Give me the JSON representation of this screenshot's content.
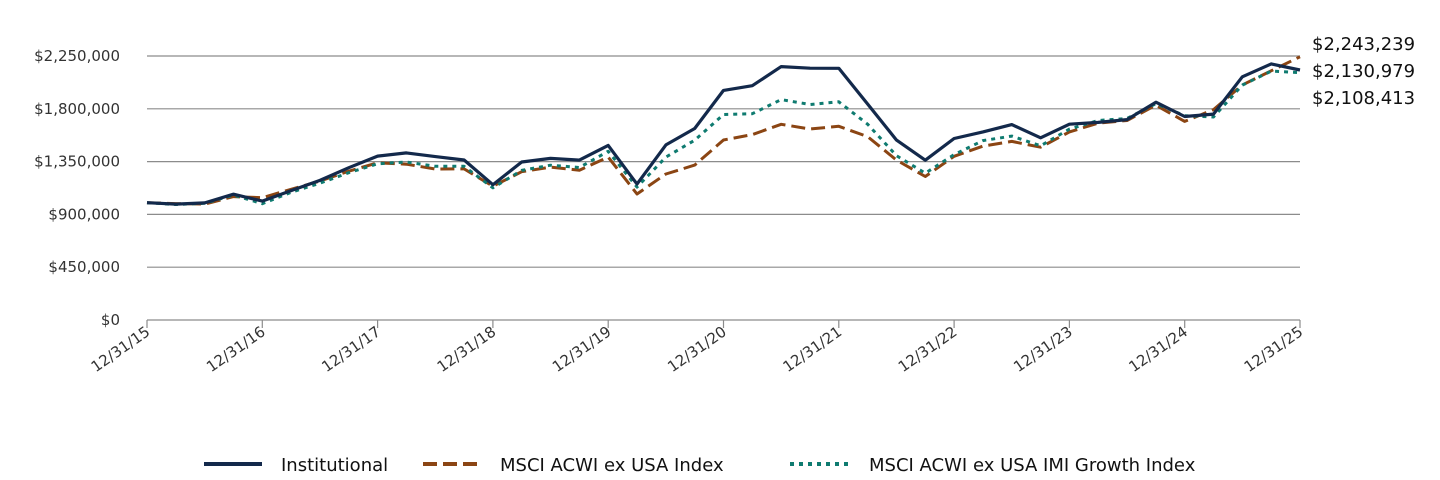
{
  "chart_data": {
    "type": "line",
    "title": "",
    "xlabel": "",
    "ylabel": "",
    "ylim": [
      0,
      2250000
    ],
    "y_ticks": [
      {
        "value": 0,
        "label": "$0"
      },
      {
        "value": 450000,
        "label": "$450,000"
      },
      {
        "value": 900000,
        "label": "$900,000"
      },
      {
        "value": 1350000,
        "label": "$1,350,000"
      },
      {
        "value": 1800000,
        "label": "$1,800,000"
      },
      {
        "value": 2250000,
        "label": "$2,250,000"
      }
    ],
    "x_ticks": [
      {
        "value": 0,
        "label": "12/31/15"
      },
      {
        "value": 4,
        "label": "12/31/16"
      },
      {
        "value": 8,
        "label": "12/31/17"
      },
      {
        "value": 12,
        "label": "12/31/18"
      },
      {
        "value": 16,
        "label": "12/31/19"
      },
      {
        "value": 20,
        "label": "12/31/20"
      },
      {
        "value": 24,
        "label": "12/31/21"
      },
      {
        "value": 28,
        "label": "12/31/22"
      },
      {
        "value": 32,
        "label": "12/31/23"
      },
      {
        "value": 36,
        "label": "12/31/24"
      },
      {
        "value": 40,
        "label": "12/31/25"
      }
    ],
    "x": [
      0,
      1,
      2,
      3,
      4,
      5,
      6,
      7,
      8,
      9,
      10,
      11,
      12,
      13,
      14,
      15,
      16,
      17,
      18,
      19,
      20,
      21,
      22,
      23,
      24,
      25,
      26,
      27,
      28,
      29,
      30,
      31,
      32,
      33,
      34,
      35,
      36,
      37,
      38,
      39,
      40
    ],
    "series": [
      {
        "name": "Institutional",
        "color": "#13294b",
        "dash": "solid",
        "values": [
          1000000,
          988000,
          998000,
          1072000,
          1013000,
          1103000,
          1190000,
          1298000,
          1397000,
          1424000,
          1393000,
          1364000,
          1153000,
          1347000,
          1377000,
          1363000,
          1488000,
          1158000,
          1492000,
          1632000,
          1957000,
          1997000,
          2160000,
          2146000,
          2145000,
          1841000,
          1533000,
          1362000,
          1547000,
          1603000,
          1665000,
          1553000,
          1669000,
          1684000,
          1708000,
          1856000,
          1734000,
          1755000,
          2073000,
          2183000,
          2130979
        ]
      },
      {
        "name": "MSCI ACWI ex USA Index",
        "color": "#8b4513",
        "dash": "dashed",
        "values": [
          1000000,
          992000,
          988000,
          1052000,
          1042000,
          1114000,
          1185000,
          1268000,
          1340000,
          1328000,
          1287000,
          1288000,
          1140000,
          1264000,
          1303000,
          1277000,
          1388000,
          1074000,
          1244000,
          1320000,
          1534000,
          1580000,
          1668000,
          1628000,
          1651000,
          1563000,
          1363000,
          1223000,
          1395000,
          1482000,
          1522000,
          1473000,
          1603000,
          1678000,
          1700000,
          1831000,
          1693000,
          1793000,
          2003000,
          2124000,
          2243239
        ]
      },
      {
        "name": "MSCI ACWI ex USA IMI Growth Index",
        "color": "#0f7b70",
        "dash": "dotted",
        "values": [
          1000000,
          984000,
          995000,
          1065000,
          991000,
          1088000,
          1166000,
          1255000,
          1331000,
          1347000,
          1310000,
          1310000,
          1127000,
          1275000,
          1319000,
          1300000,
          1438000,
          1133000,
          1388000,
          1532000,
          1751000,
          1758000,
          1878000,
          1837000,
          1860000,
          1669000,
          1400000,
          1251000,
          1410000,
          1529000,
          1567000,
          1485000,
          1627000,
          1700000,
          1717000,
          1844000,
          1741000,
          1730000,
          2002000,
          2121000,
          2108413
        ]
      }
    ],
    "end_labels": [
      "$2,243,239",
      "$2,130,979",
      "$2,108,413"
    ],
    "legend": [
      {
        "label": "Institutional",
        "color": "#13294b",
        "dash": "solid"
      },
      {
        "label": "MSCI ACWI ex USA Index",
        "color": "#8b4513",
        "dash": "dashed"
      },
      {
        "label": "MSCI ACWI ex USA IMI Growth Index",
        "color": "#0f7b70",
        "dash": "dotted"
      }
    ],
    "grid": true,
    "legend_position": "bottom-center"
  }
}
